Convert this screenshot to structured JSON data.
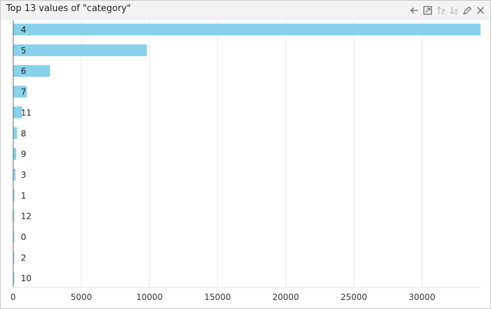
{
  "window": {
    "title": "Top 13 values of \"category\""
  },
  "toolbar": {
    "icons": [
      "back-arrow-icon",
      "expand-icon",
      "sort-ascending-icon",
      "sort-descending-icon",
      "edit-pencil-icon",
      "close-icon"
    ]
  },
  "colors": {
    "bar": "#87d2ea",
    "grid": "#e6e6e6",
    "axis": "#666666"
  },
  "chart_data": {
    "type": "bar",
    "orientation": "horizontal",
    "title": "Top 13 values of \"category\"",
    "categories": [
      "4",
      "5",
      "6",
      "7",
      "11",
      "8",
      "9",
      "3",
      "1",
      "12",
      "0",
      "2",
      "10"
    ],
    "values": [
      34300,
      9800,
      2700,
      1000,
      650,
      290,
      220,
      170,
      90,
      70,
      55,
      45,
      35
    ],
    "xlim": [
      0,
      34300
    ],
    "xticks": [
      0,
      5000,
      10000,
      15000,
      20000,
      25000,
      30000
    ],
    "grid": true,
    "legend": "none"
  }
}
